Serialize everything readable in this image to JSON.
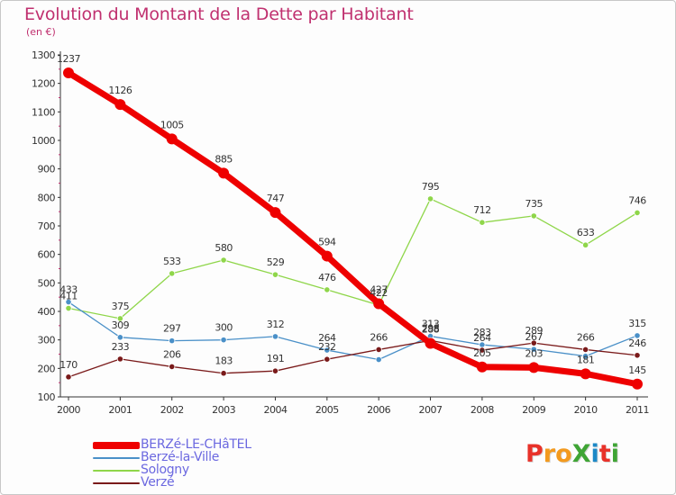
{
  "header": {
    "title": "Evolution du Montant de la Dette par Habitant",
    "subtitle": "(en €)"
  },
  "logo": {
    "text": "ProXiti",
    "letter_colors": [
      "#e8322a",
      "#f39a1e",
      "#f39a1e",
      "#3fa535",
      "#1d89c7",
      "#e8322a",
      "#3fa535"
    ]
  },
  "chart_data": {
    "type": "line",
    "title": "Evolution du Montant de la Dette par Habitant",
    "subtitle": "(en €)",
    "xlabel": "",
    "ylabel": "",
    "ylim": [
      100,
      1300
    ],
    "yticks": [
      100,
      200,
      300,
      400,
      500,
      600,
      700,
      800,
      900,
      1000,
      1100,
      1200,
      1300
    ],
    "grid": false,
    "legend_position": "bottom-left",
    "x": [
      "2000",
      "2001",
      "2002",
      "2003",
      "2004",
      "2005",
      "2006",
      "2007",
      "2008",
      "2009",
      "2010",
      "2011"
    ],
    "series": [
      {
        "name": "BERZé-LE-CHâTEL",
        "values": [
          1237,
          1126,
          1005,
          885,
          747,
          594,
          427,
          288,
          205,
          203,
          181,
          145
        ],
        "color": "#ee0000",
        "labels_shown": true
      },
      {
        "name": "Berzé-la-Ville",
        "values": [
          433,
          309,
          297,
          300,
          312,
          264,
          231,
          313,
          283,
          267,
          243,
          315
        ],
        "color": "#4a90c8",
        "labels_shown": [
          true,
          true,
          true,
          true,
          true,
          true,
          false,
          true,
          true,
          true,
          false,
          true
        ]
      },
      {
        "name": "Sologny",
        "values": [
          411,
          375,
          533,
          580,
          529,
          476,
          422,
          795,
          712,
          735,
          633,
          746
        ],
        "color": "#8fd64a",
        "labels_shown": true
      },
      {
        "name": "Verzé",
        "values": [
          170,
          233,
          206,
          183,
          191,
          232,
          266,
          298,
          264,
          289,
          266,
          246
        ],
        "color": "#7a1a1a",
        "labels_shown": true
      }
    ]
  }
}
